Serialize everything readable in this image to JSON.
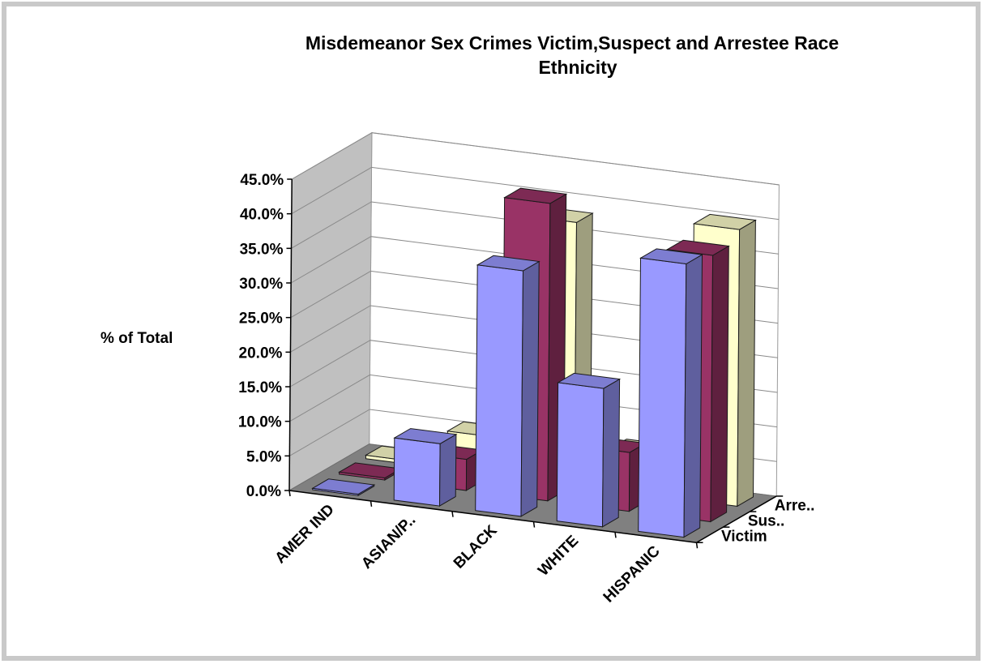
{
  "chart_data": {
    "type": "bar",
    "title_line1": "Misdemeanor Sex Crimes Victim,Suspect and Arrestee Race",
    "title_line2": "Ethnicity",
    "ylabel": "% of Total",
    "ylim": [
      0,
      45
    ],
    "y_ticks": [
      "0.0%",
      "5.0%",
      "10.0%",
      "15.0%",
      "20.0%",
      "25.0%",
      "30.0%",
      "35.0%",
      "40.0%",
      "45.0%"
    ],
    "categories": [
      "AMER IND",
      "ASIAN/P..",
      "BLACK",
      "WHITE",
      "HISPANIC"
    ],
    "series_labels": [
      "Victim",
      "Sus..",
      "Arre.."
    ],
    "series": [
      {
        "name": "Victim",
        "values": [
          0.2,
          9.0,
          35.5,
          20.0,
          39.5
        ]
      },
      {
        "name": "Suspect",
        "values": [
          0.3,
          4.5,
          43.0,
          8.5,
          38.5
        ]
      },
      {
        "name": "Arrestee",
        "values": [
          0.5,
          5.5,
          38.0,
          6.0,
          40.0
        ]
      }
    ],
    "grid": true,
    "projection": "3d"
  },
  "colors": {
    "victim": "#9999ff",
    "suspect": "#993366",
    "arrestee": "#ffffcc",
    "wall": "#c0c0c0",
    "floor": "#808080",
    "frame": "#c9c9c9"
  }
}
